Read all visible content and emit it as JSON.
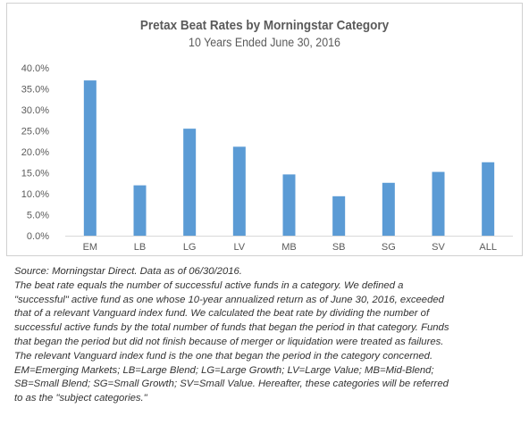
{
  "chart_data": {
    "type": "bar",
    "title": "Pretax Beat Rates by Morningstar Category",
    "subtitle": "10 Years Ended June 30, 2016",
    "categories": [
      "EM",
      "LB",
      "LG",
      "LV",
      "MB",
      "SB",
      "SG",
      "SV",
      "ALL"
    ],
    "values": [
      37.0,
      12.0,
      25.5,
      21.2,
      14.6,
      9.4,
      12.6,
      15.2,
      17.5
    ],
    "ylim": [
      0,
      40
    ],
    "yticks": [
      "0.0%",
      "5.0%",
      "10.0%",
      "15.0%",
      "20.0%",
      "25.0%",
      "30.0%",
      "35.0%",
      "40.0%"
    ],
    "xlabel": "",
    "ylabel": "",
    "grid": false,
    "legend": "none",
    "bar_color": "#5b9bd5"
  },
  "caption": {
    "lines": [
      "Source: Morningstar Direct. Data as of 06/30/2016.",
      "The beat rate equals the number of successful active funds in a category. We defined a",
      "\"successful\" active fund as one whose 10-year annualized return as of June 30, 2016, exceeded",
      "that of a relevant Vanguard index fund. We calculated the beat rate by dividing the number of",
      "successful active funds by the total number of funds that began the period in that category. Funds",
      "that began the period but did not finish because of merger or liquidation were treated as failures.",
      "The relevant Vanguard index fund is the one that began the period in the category concerned.",
      "EM=Emerging Markets; LB=Large Blend; LG=Large Growth; LV=Large Value; MB=Mid-Blend;",
      "SB=Small Blend; SG=Small Growth; SV=Small Value. Hereafter, these categories will be referred",
      "to as the \"subject categories.\""
    ]
  }
}
